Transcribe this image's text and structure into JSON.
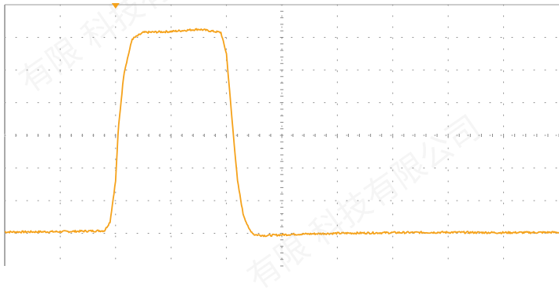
{
  "colors": {
    "background": "#ffffff",
    "grid": "#8a8a8a",
    "trace": "#f5a21b",
    "trigger_marker": "#f5a21b",
    "watermark": "#bdbdbd"
  },
  "icons": {
    "trigger": "trigger-marker-icon"
  },
  "watermark_text": "有限 科技有限公司",
  "chart_data": {
    "type": "line",
    "title": "",
    "xlabel": "",
    "ylabel": "",
    "grid": true,
    "grid_style": "dotted",
    "divisions": {
      "x": 10,
      "y": 8
    },
    "xlim": [
      0,
      10
    ],
    "ylim": [
      0,
      8
    ],
    "trigger_position_div": 2.0,
    "series": [
      {
        "x": [
          0.0,
          1.0,
          1.8,
          1.9,
          2.0,
          2.05,
          2.15,
          2.3,
          2.5,
          3.0,
          3.5,
          3.9,
          4.0,
          4.1,
          4.2,
          4.3,
          4.4,
          4.5,
          4.7,
          5.2,
          6.0,
          7.0,
          8.0,
          9.0,
          10.0
        ],
        "y": [
          1.04,
          1.05,
          1.08,
          1.35,
          2.6,
          4.2,
          5.9,
          6.95,
          7.15,
          7.18,
          7.25,
          7.15,
          6.5,
          4.5,
          2.6,
          1.6,
          1.15,
          0.96,
          0.93,
          0.97,
          1.0,
          1.02,
          1.03,
          1.02,
          1.03
        ]
      }
    ]
  }
}
